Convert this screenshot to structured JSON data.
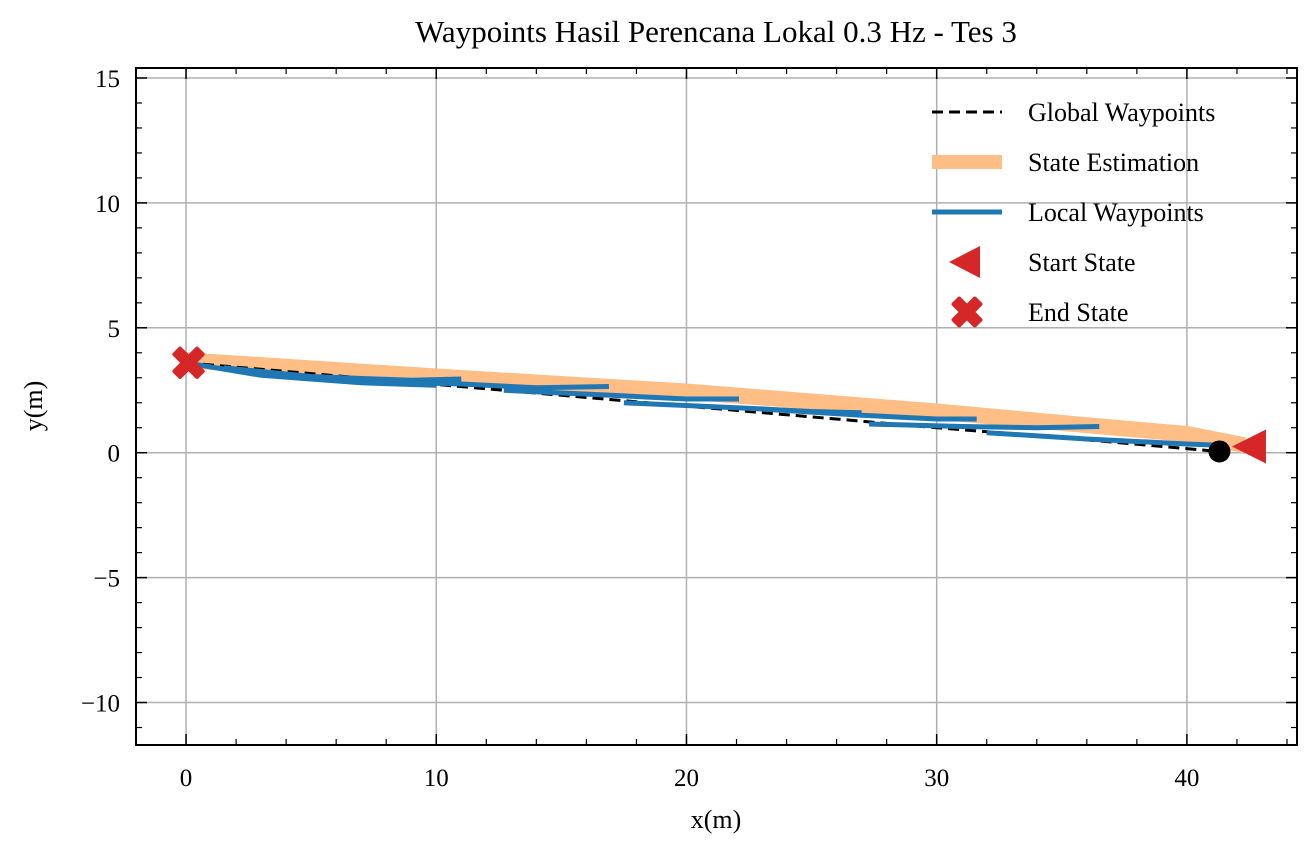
{
  "chart_data": {
    "type": "line",
    "title": "Waypoints Hasil Perencana Lokal 0.3 Hz - Tes 3",
    "xlabel": "x(m)",
    "ylabel": "y(m)",
    "xlim": [
      -2.0,
      44.4
    ],
    "ylim": [
      -11.7,
      15.4
    ],
    "xticks": [
      0,
      10,
      20,
      30,
      40
    ],
    "yticks": [
      -10,
      -5,
      0,
      5,
      10,
      15
    ],
    "xtick_labels": [
      "0",
      "10",
      "20",
      "30",
      "40"
    ],
    "ytick_labels": [
      "−10",
      "−5",
      "0",
      "5",
      "10",
      "15"
    ],
    "grid": true,
    "legend_position": "top-right",
    "series": [
      {
        "name": "Global Waypoints",
        "style": "dashed",
        "color": "#000000",
        "points": [
          [
            0,
            3.6
          ],
          [
            7.5,
            2.95
          ],
          [
            15,
            2.3
          ],
          [
            22.5,
            1.65
          ],
          [
            30,
            1.0
          ],
          [
            35,
            0.6
          ],
          [
            41.3,
            0.05
          ]
        ]
      },
      {
        "name": "State Estimation",
        "style": "thick",
        "color": "#ffbe86",
        "points": [
          [
            0,
            3.7
          ],
          [
            10,
            3.05
          ],
          [
            20,
            2.45
          ],
          [
            30,
            1.65
          ],
          [
            36,
            1.1
          ],
          [
            40,
            0.75
          ],
          [
            42.3,
            0.3
          ]
        ]
      },
      {
        "name": "Local Waypoints",
        "style": "solid",
        "color": "#1f77b4",
        "segments": [
          [
            [
              0,
              3.6
            ],
            [
              3,
              3.1
            ],
            [
              7,
              2.8
            ],
            [
              10,
              2.7
            ]
          ],
          [
            [
              1.5,
              3.4
            ],
            [
              5,
              3.05
            ],
            [
              9,
              2.9
            ],
            [
              11,
              2.95
            ]
          ],
          [
            [
              7.3,
              2.85
            ],
            [
              11,
              2.75
            ],
            [
              14,
              2.6
            ],
            [
              16.9,
              2.65
            ]
          ],
          [
            [
              12.7,
              2.5
            ],
            [
              17,
              2.3
            ],
            [
              20,
              2.15
            ],
            [
              22.1,
              2.15
            ]
          ],
          [
            [
              17.5,
              2.0
            ],
            [
              22,
              1.8
            ],
            [
              25,
              1.65
            ],
            [
              27,
              1.6
            ]
          ],
          [
            [
              23,
              1.75
            ],
            [
              27,
              1.5
            ],
            [
              30,
              1.35
            ],
            [
              31.6,
              1.35
            ]
          ],
          [
            [
              27.3,
              1.15
            ],
            [
              31,
              1.05
            ],
            [
              34,
              1.0
            ],
            [
              36.5,
              1.05
            ]
          ],
          [
            [
              32,
              0.8
            ],
            [
              36,
              0.55
            ],
            [
              40,
              0.35
            ],
            [
              41.3,
              0.3
            ]
          ]
        ]
      }
    ],
    "markers": [
      {
        "name": "Start State",
        "shape": "triangle-left",
        "color": "#d62728",
        "x": 42.6,
        "y": 0.25
      },
      {
        "name": "End State",
        "shape": "x-filled",
        "color": "#d62728",
        "x": 0.1,
        "y": 3.6
      },
      {
        "shape": "circle",
        "color": "#000000",
        "x": 41.3,
        "y": 0.05
      }
    ]
  }
}
